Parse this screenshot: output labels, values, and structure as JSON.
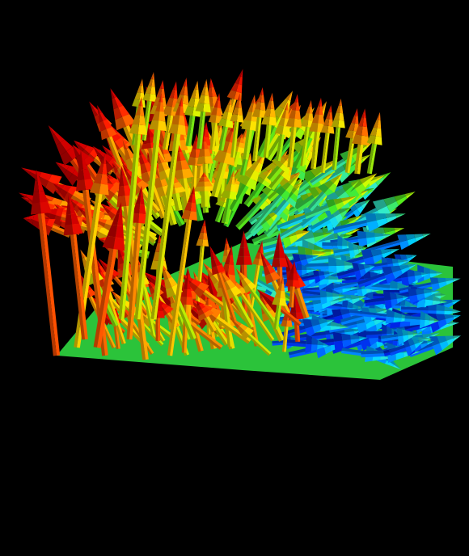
{
  "scene": {
    "kind": "3d-vector-field-glyph-rendering",
    "background_color": "#000000",
    "glyph": "cone-arrow",
    "colormap": "jet",
    "colormap_stops": [
      "#0010d0",
      "#0060ff",
      "#00c8ff",
      "#30e0c0",
      "#40e020",
      "#c8f000",
      "#ffd000",
      "#ff8000",
      "#ff2000",
      "#c80000"
    ],
    "plane_color": "#30d840"
  }
}
